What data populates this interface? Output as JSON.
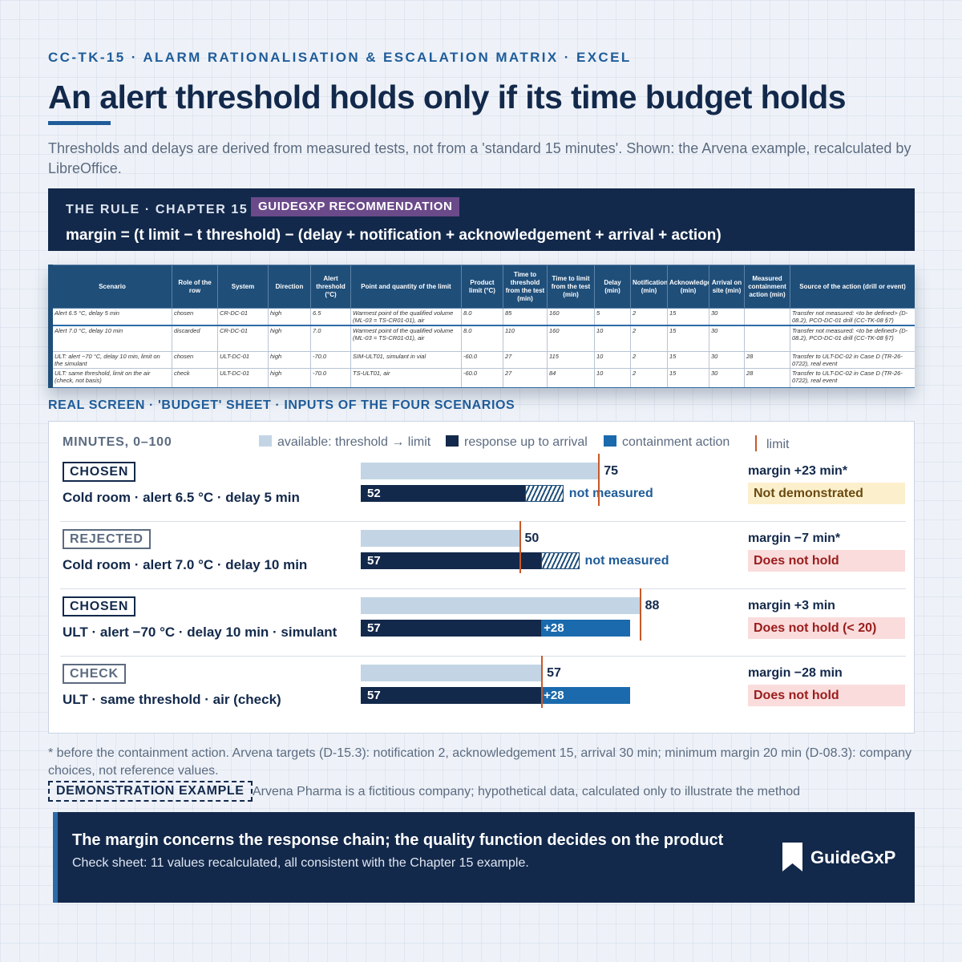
{
  "header": {
    "kicker": "CC-TK-15  ·  ALARM RATIONALISATION & ESCALATION MATRIX  ·  EXCEL",
    "title": "An alert threshold holds only if its time budget holds",
    "subtitle": "Thresholds and delays are derived from measured tests, not from a 'standard 15 minutes'. Shown: the Arvena example, recalculated by LibreOffice."
  },
  "rule": {
    "label": "THE RULE  ·  CHAPTER 15",
    "badge": "GUIDEGXP RECOMMENDATION",
    "formula": "margin = (t limit − t threshold) − (delay + notification + acknowledgement + arrival + action)"
  },
  "sheet": {
    "headers": [
      "Scenario",
      "Role of the row",
      "System",
      "Direction",
      "Alert threshold (°C)",
      "Point and quantity of the limit",
      "Product limit (°C)",
      "Time to threshold from the test (min)",
      "Time to limit from the test (min)",
      "Delay (min)",
      "Notification (min)",
      "Acknowledgement (min)",
      "Arrival on site (min)",
      "Measured containment action (min)",
      "Source of the action (drill or event)"
    ],
    "rows": [
      [
        "Alert 6.5 °C, delay 5 min",
        "chosen",
        "CR-DC-01",
        "high",
        "6.5",
        "Warmest point of the qualified volume (ML-03 = TS-CR01-01), air",
        "8.0",
        "85",
        "160",
        "5",
        "2",
        "15",
        "30",
        "",
        "Transfer not measured: <to be defined> (D-08.2), PCO-DC-01 drill (CC-TK-08 §7)"
      ],
      [
        "Alert 7.0 °C, delay 10 min",
        "discarded",
        "CR-DC-01",
        "high",
        "7.0",
        "Warmest point of the qualified volume (ML-03 = TS-CR01-01), air",
        "8.0",
        "110",
        "160",
        "10",
        "2",
        "15",
        "30",
        "",
        "Transfer not measured: <to be defined> (D-08.2), PCO-DC-01 drill (CC-TK-08 §7)"
      ],
      [
        "ULT: alert −70 °C, delay 10 min, limit on the simulant",
        "chosen",
        "ULT-DC-01",
        "high",
        "-70.0",
        "SIM-ULT01, simulant in vial",
        "-60.0",
        "27",
        "115",
        "10",
        "2",
        "15",
        "30",
        "28",
        "Transfer to ULT-DC-02 in Case D (TR-26-0722), real event"
      ],
      [
        "ULT: same threshold, limit on the air (check, not basis)",
        "check",
        "ULT-DC-01",
        "high",
        "-70.0",
        "TS-ULT01, air",
        "-60.0",
        "27",
        "84",
        "10",
        "2",
        "15",
        "30",
        "28",
        "Transfer to ULT-DC-02 in Case D (TR-26-0722), real event"
      ]
    ]
  },
  "section_label": "REAL SCREEN  ·  'BUDGET' SHEET  ·  INPUTS OF THE FOUR SCENARIOS",
  "chart_legend": {
    "axis_caption": "MINUTES, 0–100",
    "available": "available: threshold → limit",
    "response": "response up to arrival",
    "action": "containment action",
    "limit": "limit"
  },
  "chart_data": {
    "type": "bar",
    "x_range": [
      0,
      100
    ],
    "unit": "minutes",
    "scenarios": [
      {
        "tag": "CHOSEN",
        "label": "Cold room · alert 6.5 °C · delay 5 min",
        "available": 75,
        "response": 52,
        "response_label": "52",
        "action": 15,
        "action_measured": false,
        "action_label": "not measured",
        "available_label": "75",
        "margin": "margin +23 min*",
        "verdict": "Not demonstrated",
        "verdict_style": "warn"
      },
      {
        "tag": "REJECTED",
        "label": "Cold room · alert 7.0 °C · delay 10 min",
        "available": 50,
        "response": 57,
        "response_label": "57",
        "action": 15,
        "action_measured": false,
        "action_label": "not measured",
        "available_label": "50",
        "margin": "margin −7 min*",
        "verdict": "Does not hold",
        "verdict_style": "bad"
      },
      {
        "tag": "CHOSEN",
        "label": "ULT · alert −70 °C · delay 10 min · simulant",
        "available": 88,
        "response": 57,
        "response_label": "57",
        "action": 28,
        "action_measured": true,
        "action_label": "+28",
        "available_label": "88",
        "margin": "margin +3 min",
        "verdict": "Does not hold (< 20)",
        "verdict_style": "bad"
      },
      {
        "tag": "CHECK",
        "label": "ULT · same threshold · air (check)",
        "available": 57,
        "response": 57,
        "response_label": "57",
        "action": 28,
        "action_measured": true,
        "action_label": "+28",
        "available_label": "57",
        "margin": "margin −28 min",
        "verdict": "Does not hold",
        "verdict_style": "bad"
      }
    ],
    "colors": {
      "available": "#c3d5e5",
      "response": "#13294b",
      "action": "#1a6aad",
      "limit": "#c8582a"
    }
  },
  "footnote": "* before the containment action. Arvena targets (D-15.3): notification 2, acknowledgement 15, arrival 30 min; minimum margin 20 min (D-08.3): company choices, not reference values.",
  "demo": {
    "tag": "DEMONSTRATION EXAMPLE",
    "text": "Arvena Pharma is a fictitious company; hypothetical data, calculated only to illustrate the method"
  },
  "banner": {
    "headline": "The margin concerns the response chain; the quality function decides on the product",
    "sub": "Check sheet: 11 values recalculated, all consistent with the Chapter 15 example.",
    "brand": "GuideGxP",
    "brand_icon": "bookmark-icon"
  }
}
